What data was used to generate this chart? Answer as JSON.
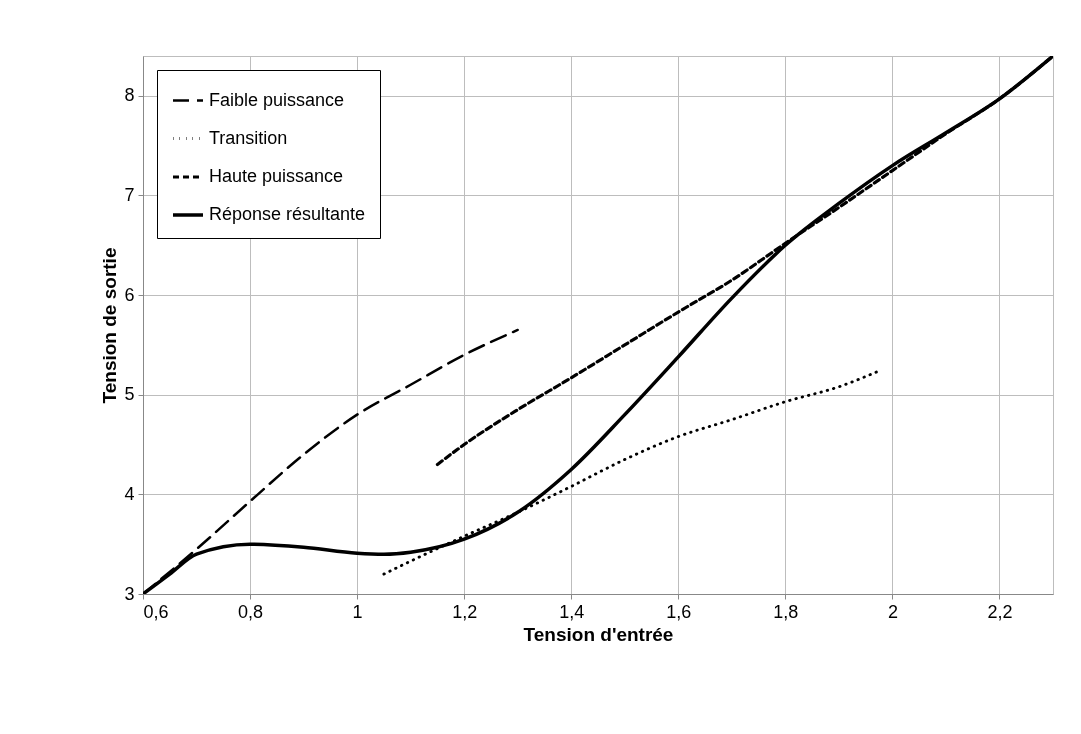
{
  "chart_data": {
    "type": "line",
    "xlabel": "Tension d'entrée",
    "ylabel": "Tension de sortie",
    "xlim": [
      0.6,
      2.3
    ],
    "ylim": [
      3,
      8.4
    ],
    "xticks": [
      {
        "value": 0.6,
        "label": "0,6"
      },
      {
        "value": 0.8,
        "label": "0,8"
      },
      1,
      {
        "value": 1.2,
        "label": "1,2"
      },
      {
        "value": 1.4,
        "label": "1,4"
      },
      {
        "value": 1.6,
        "label": "1,6"
      },
      {
        "value": 1.8,
        "label": "1,8"
      },
      2,
      {
        "value": 2.2,
        "label": "2,2"
      }
    ],
    "yticks": [
      3,
      4,
      5,
      6,
      7,
      8
    ],
    "grid": true,
    "legend": "top left",
    "series": [
      {
        "name": "Faible puissance",
        "color": "#000000",
        "line_style": "dashed",
        "x": [
          0.6,
          0.7,
          0.8,
          0.9,
          1.0,
          1.1,
          1.2,
          1.3
        ],
        "values": [
          3,
          3.45,
          3.93,
          4.4,
          4.8,
          5.1,
          5.4,
          5.65
        ]
      },
      {
        "name": "Transition",
        "color": "#000000",
        "line_style": "dotted",
        "x": [
          1.05,
          1.1,
          1.2,
          1.3,
          1.4,
          1.5,
          1.6,
          1.7,
          1.8,
          1.9,
          1.98
        ],
        "values": [
          3.2,
          3.33,
          3.58,
          3.82,
          4.08,
          4.35,
          4.58,
          4.75,
          4.93,
          5.08,
          5.25
        ]
      },
      {
        "name": "Haute puissance",
        "color": "#000000",
        "line_style": "dashed",
        "x": [
          1.15,
          1.2,
          1.3,
          1.4,
          1.5,
          1.6,
          1.7,
          1.8,
          1.9,
          2.0,
          2.1,
          2.2,
          2.3
        ],
        "values": [
          4.3,
          4.5,
          4.85,
          5.17,
          5.5,
          5.83,
          6.15,
          6.52,
          6.88,
          7.25,
          7.62,
          7.97,
          8.4
        ]
      },
      {
        "name": "Réponse résultante",
        "color": "#000000",
        "line_style": "solid",
        "x": [
          0.6,
          0.65,
          0.7,
          0.8,
          0.9,
          1.0,
          1.05,
          1.1,
          1.2,
          1.3,
          1.4,
          1.5,
          1.6,
          1.7,
          1.8,
          1.9,
          2.0,
          2.1,
          2.2,
          2.3
        ],
        "values": [
          3,
          3.2,
          3.4,
          3.5,
          3.47,
          3.41,
          3.4,
          3.42,
          3.55,
          3.82,
          4.25,
          4.8,
          5.38,
          5.97,
          6.5,
          6.92,
          7.3,
          7.63,
          7.97,
          8.4
        ]
      }
    ]
  }
}
